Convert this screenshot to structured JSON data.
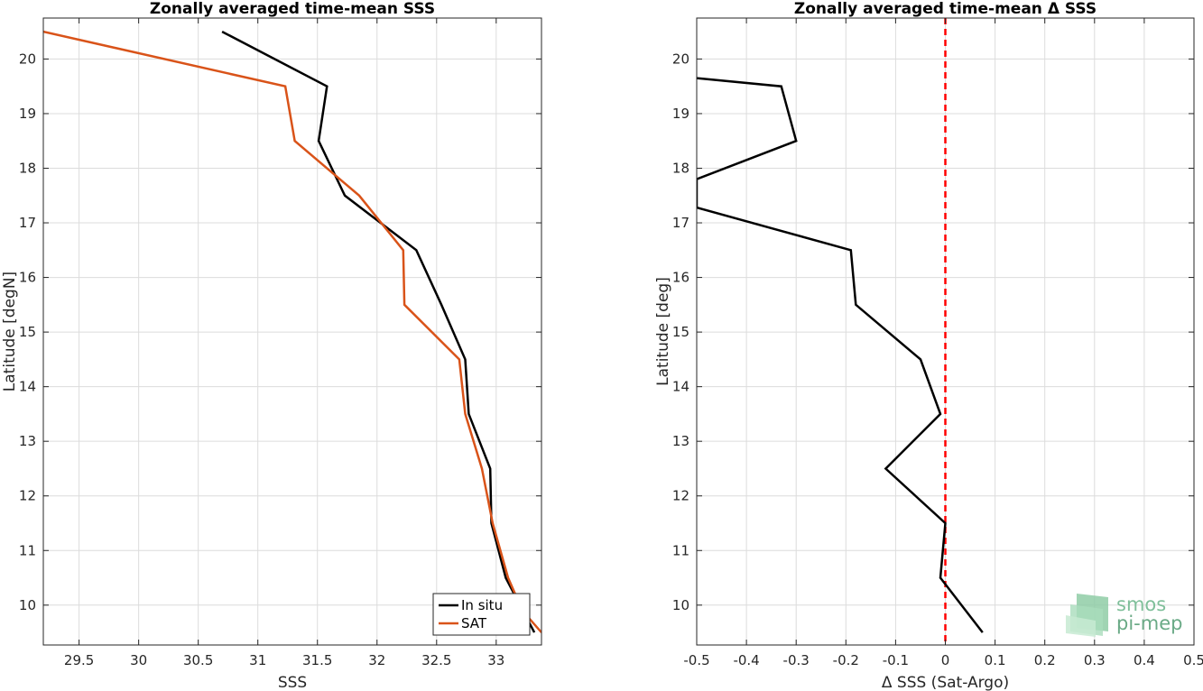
{
  "chart_data": [
    {
      "type": "line",
      "title": "Zonally averaged time-mean SSS",
      "xlabel": "SSS",
      "ylabel": "Latitude [degN]",
      "xlim": [
        29.2,
        33.38
      ],
      "ylim": [
        9.27,
        20.75
      ],
      "xticks": [
        29.5,
        30,
        30.5,
        31,
        31.5,
        32,
        32.5,
        33
      ],
      "xtick_labels": [
        "29.5",
        "30",
        "30.5",
        "31",
        "31.5",
        "32",
        "32.5",
        "33"
      ],
      "yticks": [
        10,
        11,
        12,
        13,
        14,
        15,
        16,
        17,
        18,
        19,
        20
      ],
      "ytick_labels": [
        "10",
        "11",
        "12",
        "13",
        "14",
        "15",
        "16",
        "17",
        "18",
        "19",
        "20"
      ],
      "grid": true,
      "legend_position": "bottom-right",
      "series": [
        {
          "name": "In situ",
          "color": "#000000",
          "points": [
            [
              30.7,
              20.5
            ],
            [
              31.58,
              19.5
            ],
            [
              31.51,
              18.5
            ],
            [
              31.73,
              17.5
            ],
            [
              32.33,
              16.5
            ],
            [
              32.54,
              15.5
            ],
            [
              32.74,
              14.5
            ],
            [
              32.77,
              13.5
            ],
            [
              32.95,
              12.5
            ],
            [
              32.96,
              11.5
            ],
            [
              33.08,
              10.5
            ],
            [
              33.2,
              10.0
            ],
            [
              33.32,
              9.5
            ]
          ]
        },
        {
          "name": "SAT",
          "color": "#d95319",
          "points": [
            [
              29.2,
              20.5
            ],
            [
              31.23,
              19.5
            ],
            [
              31.31,
              18.5
            ],
            [
              31.85,
              17.5
            ],
            [
              32.22,
              16.5
            ],
            [
              32.23,
              15.5
            ],
            [
              32.69,
              14.5
            ],
            [
              32.74,
              13.5
            ],
            [
              32.88,
              12.5
            ],
            [
              32.97,
              11.5
            ],
            [
              33.1,
              10.5
            ],
            [
              33.22,
              9.9
            ],
            [
              33.38,
              9.5
            ]
          ]
        }
      ]
    },
    {
      "type": "line",
      "title": "Zonally averaged time-mean Δ SSS",
      "xlabel": "Δ SSS (Sat-Argo)",
      "ylabel": "Latitude [deg]",
      "xlim": [
        -0.5,
        0.5
      ],
      "ylim": [
        9.27,
        20.75
      ],
      "xticks": [
        -0.5,
        -0.4,
        -0.3,
        -0.2,
        -0.1,
        0,
        0.1,
        0.2,
        0.3,
        0.4,
        0.5
      ],
      "xtick_labels": [
        "-0.5",
        "-0.4",
        "-0.3",
        "-0.2",
        "-0.1",
        "0",
        "0.1",
        "0.2",
        "0.3",
        "0.4",
        "0.5"
      ],
      "yticks": [
        10,
        11,
        12,
        13,
        14,
        15,
        16,
        17,
        18,
        19,
        20
      ],
      "ytick_labels": [
        "10",
        "11",
        "12",
        "13",
        "14",
        "15",
        "16",
        "17",
        "18",
        "19",
        "20"
      ],
      "grid": true,
      "reference_line": {
        "x": 0,
        "color": "#ff0000",
        "style": "dashed"
      },
      "series": [
        {
          "color": "#000000",
          "points": [
            [
              -0.5,
              19.65
            ],
            [
              -0.33,
              19.5
            ],
            [
              -0.3,
              18.5
            ],
            [
              -0.5,
              17.8
            ],
            [
              -0.5,
              17.28
            ],
            [
              -0.19,
              16.5
            ],
            [
              -0.18,
              15.5
            ],
            [
              -0.05,
              14.5
            ],
            [
              -0.01,
              13.5
            ],
            [
              -0.12,
              12.5
            ],
            [
              0.0,
              11.5
            ],
            [
              -0.01,
              10.5
            ],
            [
              0.075,
              9.5
            ]
          ]
        }
      ]
    }
  ],
  "logo": {
    "line1": "smos",
    "line2": "pi-mep"
  }
}
